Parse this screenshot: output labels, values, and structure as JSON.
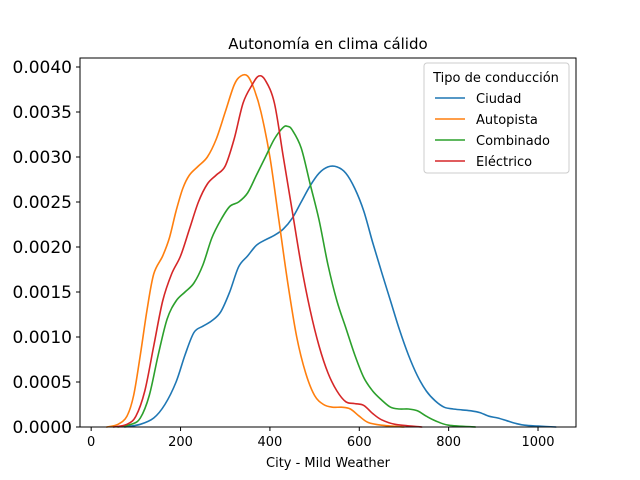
{
  "chart_data": {
    "type": "line",
    "title": "Autonomía en clima cálido",
    "xlabel": "City - Mild Weather",
    "ylabel": "",
    "xlim": [
      -25,
      1085
    ],
    "ylim": [
      0,
      0.0041
    ],
    "x_ticks": [
      0,
      200,
      400,
      600,
      800,
      1000
    ],
    "y_ticks": [
      "0.0000",
      "0.0005",
      "0.0010",
      "0.0015",
      "0.0020",
      "0.0025",
      "0.0030",
      "0.0035",
      "0.0040"
    ],
    "grid": false,
    "legend": {
      "title": "Tipo de conducción",
      "position": "top-right"
    },
    "series": [
      {
        "name": "Ciudad",
        "color": "#1f77b4",
        "points": [
          [
            75,
            0
          ],
          [
            110,
            3e-05
          ],
          [
            140,
            0.0001
          ],
          [
            165,
            0.00025
          ],
          [
            190,
            0.0005
          ],
          [
            210,
            0.0008
          ],
          [
            230,
            0.00105
          ],
          [
            250,
            0.00112
          ],
          [
            270,
            0.00118
          ],
          [
            290,
            0.00128
          ],
          [
            310,
            0.0015
          ],
          [
            330,
            0.00178
          ],
          [
            350,
            0.0019
          ],
          [
            370,
            0.00202
          ],
          [
            390,
            0.00208
          ],
          [
            410,
            0.00213
          ],
          [
            430,
            0.0022
          ],
          [
            450,
            0.00232
          ],
          [
            470,
            0.0025
          ],
          [
            490,
            0.00268
          ],
          [
            510,
            0.00282
          ],
          [
            530,
            0.00289
          ],
          [
            550,
            0.00289
          ],
          [
            570,
            0.00282
          ],
          [
            590,
            0.00265
          ],
          [
            610,
            0.0024
          ],
          [
            630,
            0.00205
          ],
          [
            650,
            0.00172
          ],
          [
            670,
            0.0014
          ],
          [
            690,
            0.00108
          ],
          [
            710,
            0.0008
          ],
          [
            730,
            0.00057
          ],
          [
            750,
            0.0004
          ],
          [
            770,
            0.00029
          ],
          [
            790,
            0.00022
          ],
          [
            810,
            0.0002
          ],
          [
            830,
            0.00019
          ],
          [
            850,
            0.00018
          ],
          [
            870,
            0.00016
          ],
          [
            890,
            0.00012
          ],
          [
            910,
            0.0001
          ],
          [
            930,
            7e-05
          ],
          [
            950,
            4e-05
          ],
          [
            970,
            2e-05
          ],
          [
            1000,
            1e-05
          ],
          [
            1040,
            0
          ]
        ]
      },
      {
        "name": "Autopista",
        "color": "#ff7f0e",
        "points": [
          [
            35,
            0
          ],
          [
            60,
            3e-05
          ],
          [
            80,
            0.00012
          ],
          [
            95,
            0.00035
          ],
          [
            110,
            0.0008
          ],
          [
            125,
            0.0013
          ],
          [
            140,
            0.0017
          ],
          [
            160,
            0.0019
          ],
          [
            175,
            0.0021
          ],
          [
            190,
            0.0024
          ],
          [
            205,
            0.00265
          ],
          [
            220,
            0.0028
          ],
          [
            240,
            0.0029
          ],
          [
            260,
            0.003
          ],
          [
            280,
            0.0032
          ],
          [
            300,
            0.0035
          ],
          [
            320,
            0.0038
          ],
          [
            335,
            0.0039
          ],
          [
            350,
            0.0039
          ],
          [
            365,
            0.00375
          ],
          [
            380,
            0.0035
          ],
          [
            400,
            0.003
          ],
          [
            420,
            0.0023
          ],
          [
            440,
            0.0016
          ],
          [
            460,
            0.001
          ],
          [
            480,
            0.0006
          ],
          [
            500,
            0.00035
          ],
          [
            520,
            0.00025
          ],
          [
            540,
            0.00022
          ],
          [
            560,
            0.00022
          ],
          [
            580,
            0.0002
          ],
          [
            600,
            0.00012
          ],
          [
            620,
            5e-05
          ],
          [
            650,
            2e-05
          ],
          [
            700,
            0
          ]
        ]
      },
      {
        "name": "Combinado",
        "color": "#2ca02c",
        "points": [
          [
            60,
            0
          ],
          [
            90,
            3e-05
          ],
          [
            110,
            0.0001
          ],
          [
            130,
            0.00035
          ],
          [
            150,
            0.0008
          ],
          [
            170,
            0.0012
          ],
          [
            190,
            0.0014
          ],
          [
            210,
            0.0015
          ],
          [
            230,
            0.0016
          ],
          [
            250,
            0.0018
          ],
          [
            270,
            0.0021
          ],
          [
            290,
            0.0023
          ],
          [
            310,
            0.00245
          ],
          [
            330,
            0.0025
          ],
          [
            350,
            0.0026
          ],
          [
            370,
            0.0028
          ],
          [
            390,
            0.003
          ],
          [
            410,
            0.0032
          ],
          [
            430,
            0.00333
          ],
          [
            440,
            0.00334
          ],
          [
            450,
            0.0033
          ],
          [
            470,
            0.0031
          ],
          [
            490,
            0.0027
          ],
          [
            510,
            0.0023
          ],
          [
            530,
            0.0018
          ],
          [
            550,
            0.0014
          ],
          [
            570,
            0.0011
          ],
          [
            590,
            0.0008
          ],
          [
            610,
            0.00055
          ],
          [
            630,
            0.0004
          ],
          [
            650,
            0.0003
          ],
          [
            670,
            0.00022
          ],
          [
            690,
            0.0002
          ],
          [
            710,
            0.0002
          ],
          [
            730,
            0.00018
          ],
          [
            750,
            0.00012
          ],
          [
            770,
            7e-05
          ],
          [
            800,
            2e-05
          ],
          [
            860,
            0
          ]
        ]
      },
      {
        "name": "Eléctrico",
        "color": "#d62728",
        "points": [
          [
            50,
            0
          ],
          [
            80,
            3e-05
          ],
          [
            100,
            0.00012
          ],
          [
            120,
            0.0004
          ],
          [
            140,
            0.0009
          ],
          [
            160,
            0.0014
          ],
          [
            180,
            0.0017
          ],
          [
            200,
            0.0019
          ],
          [
            220,
            0.0022
          ],
          [
            240,
            0.0025
          ],
          [
            260,
            0.0027
          ],
          [
            280,
            0.0028
          ],
          [
            300,
            0.0029
          ],
          [
            320,
            0.0032
          ],
          [
            340,
            0.0036
          ],
          [
            360,
            0.0038
          ],
          [
            375,
            0.0039
          ],
          [
            390,
            0.00385
          ],
          [
            410,
            0.0036
          ],
          [
            430,
            0.003
          ],
          [
            450,
            0.0024
          ],
          [
            470,
            0.0018
          ],
          [
            490,
            0.0013
          ],
          [
            510,
            0.0009
          ],
          [
            530,
            0.0006
          ],
          [
            550,
            0.0004
          ],
          [
            570,
            0.00028
          ],
          [
            590,
            0.00026
          ],
          [
            610,
            0.00024
          ],
          [
            630,
            0.00015
          ],
          [
            650,
            8e-05
          ],
          [
            680,
            3e-05
          ],
          [
            740,
            0
          ]
        ]
      }
    ]
  }
}
